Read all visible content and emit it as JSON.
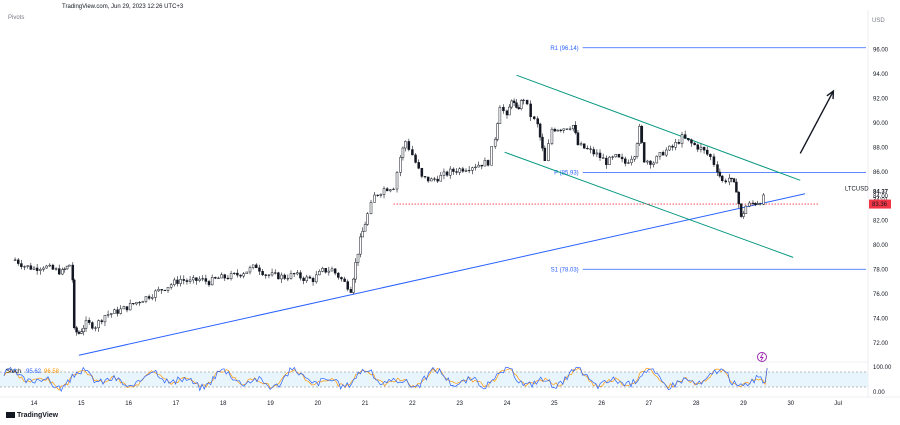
{
  "header": {
    "source_line": "TradingView.com, Jun 29, 2023 12:26 UTC+3",
    "indicator": "Pivots",
    "currency": "USD"
  },
  "footer": {
    "brand": "TradingView"
  },
  "colors": {
    "candle": "#131722",
    "pivot_line": "#2962ff",
    "channel": "#089981",
    "trendline": "#2962ff",
    "dotted": "#f23645",
    "price_tag": "#f23645",
    "stoch_k": "#2962ff",
    "stoch_d": "#ff9800",
    "stoch_band": "#e3f2fd",
    "arrow": "#131722",
    "alert": "#9c27b0"
  },
  "chart_data": {
    "type": "candlestick",
    "symbol": "LTCUSD",
    "ylim": [
      70,
      98
    ],
    "y_ticks": [
      "96.00",
      "94.00",
      "92.00",
      "90.00",
      "88.00",
      "86.00",
      "84.00",
      "82.00",
      "80.00",
      "78.00",
      "76.00",
      "74.00",
      "72.00"
    ],
    "x_ticks": [
      "14",
      "15",
      "16",
      "17",
      "18",
      "19",
      "20",
      "21",
      "22",
      "23",
      "24",
      "25",
      "26",
      "27",
      "28",
      "29",
      "30",
      "Jul"
    ],
    "close_path": [
      [
        13.6,
        78.8
      ],
      [
        13.8,
        78.3
      ],
      [
        14.0,
        78.1
      ],
      [
        14.2,
        78.3
      ],
      [
        14.4,
        78.0
      ],
      [
        14.6,
        77.8
      ],
      [
        14.75,
        78.4
      ],
      [
        14.82,
        77.2
      ],
      [
        14.85,
        73.0
      ],
      [
        14.95,
        72.8
      ],
      [
        15.1,
        73.6
      ],
      [
        15.3,
        73.4
      ],
      [
        15.5,
        74.3
      ],
      [
        15.7,
        74.5
      ],
      [
        15.9,
        74.8
      ],
      [
        16.1,
        75.2
      ],
      [
        16.3,
        75.6
      ],
      [
        16.5,
        76.0
      ],
      [
        16.7,
        76.4
      ],
      [
        16.9,
        76.8
      ],
      [
        17.1,
        77.2
      ],
      [
        17.3,
        77.0
      ],
      [
        17.5,
        77.2
      ],
      [
        17.7,
        77.0
      ],
      [
        17.9,
        77.3
      ],
      [
        18.1,
        77.4
      ],
      [
        18.3,
        77.6
      ],
      [
        18.5,
        77.9
      ],
      [
        18.7,
        78.3
      ],
      [
        18.9,
        77.6
      ],
      [
        19.1,
        77.5
      ],
      [
        19.3,
        77.4
      ],
      [
        19.5,
        77.6
      ],
      [
        19.7,
        77.3
      ],
      [
        19.9,
        77.2
      ],
      [
        20.1,
        77.9
      ],
      [
        20.3,
        78.0
      ],
      [
        20.5,
        77.2
      ],
      [
        20.7,
        76.4
      ],
      [
        20.8,
        78.5
      ],
      [
        20.9,
        80.4
      ],
      [
        21.05,
        82.5
      ],
      [
        21.2,
        84.0
      ],
      [
        21.4,
        84.6
      ],
      [
        21.6,
        84.8
      ],
      [
        21.75,
        87.2
      ],
      [
        21.85,
        88.5
      ],
      [
        22.0,
        87.4
      ],
      [
        22.2,
        85.5
      ],
      [
        22.4,
        85.3
      ],
      [
        22.6,
        85.6
      ],
      [
        22.8,
        86.0
      ],
      [
        23.0,
        86.2
      ],
      [
        23.2,
        86.4
      ],
      [
        23.4,
        86.6
      ],
      [
        23.6,
        86.8
      ],
      [
        23.75,
        88.8
      ],
      [
        23.85,
        91.5
      ],
      [
        24.0,
        90.4
      ],
      [
        24.1,
        92.0
      ],
      [
        24.2,
        91.0
      ],
      [
        24.35,
        92.0
      ],
      [
        24.5,
        90.6
      ],
      [
        24.65,
        89.8
      ],
      [
        24.8,
        86.8
      ],
      [
        24.95,
        89.5
      ],
      [
        25.2,
        89.6
      ],
      [
        25.4,
        89.8
      ],
      [
        25.5,
        88.2
      ],
      [
        25.7,
        87.8
      ],
      [
        25.9,
        87.4
      ],
      [
        26.1,
        86.8
      ],
      [
        26.3,
        87.2
      ],
      [
        26.5,
        86.7
      ],
      [
        26.7,
        87.5
      ],
      [
        26.8,
        89.5
      ],
      [
        26.9,
        87.0
      ],
      [
        27.1,
        86.8
      ],
      [
        27.3,
        87.6
      ],
      [
        27.5,
        88.0
      ],
      [
        27.7,
        88.8
      ],
      [
        27.9,
        88.3
      ],
      [
        28.1,
        87.9
      ],
      [
        28.3,
        87.2
      ],
      [
        28.45,
        86.2
      ],
      [
        28.55,
        85.2
      ],
      [
        28.7,
        85.5
      ],
      [
        28.85,
        84.6
      ],
      [
        28.95,
        82.2
      ],
      [
        29.05,
        83.2
      ],
      [
        29.2,
        83.4
      ],
      [
        29.35,
        83.6
      ],
      [
        29.5,
        84.1
      ]
    ],
    "pivot_levels": [
      {
        "label": "R1 (96.14)",
        "value": 96.14
      },
      {
        "label": "P (85.93)",
        "value": 85.93
      },
      {
        "label": "S1 (78.03)",
        "value": 78.03
      }
    ],
    "channel_upper": [
      [
        24.2,
        93.9
      ],
      [
        30.2,
        85.3
      ]
    ],
    "channel_lower": [
      [
        23.95,
        87.6
      ],
      [
        30.05,
        79.0
      ]
    ],
    "trendline": [
      [
        14.95,
        71.0
      ],
      [
        30.3,
        84.2
      ]
    ],
    "support_dotted": [
      [
        21.6,
        83.36
      ],
      [
        30.6,
        83.36
      ]
    ],
    "last_price": {
      "label": "84.37",
      "value": 84.37,
      "symbol": "LTCUSD",
      "countdown": "34:01"
    },
    "tag_price": {
      "label": "83.36",
      "value": 83.36
    },
    "arrow": {
      "from": [
        30.2,
        87.5
      ],
      "to": [
        30.9,
        92.6
      ]
    },
    "stoch": {
      "label": "Stoch",
      "k_label": "95.62",
      "d_label": "96.58",
      "ylim": [
        0,
        100
      ],
      "y_ticks": [
        "100.00",
        "0.00"
      ],
      "bands": [
        20,
        80
      ]
    }
  }
}
